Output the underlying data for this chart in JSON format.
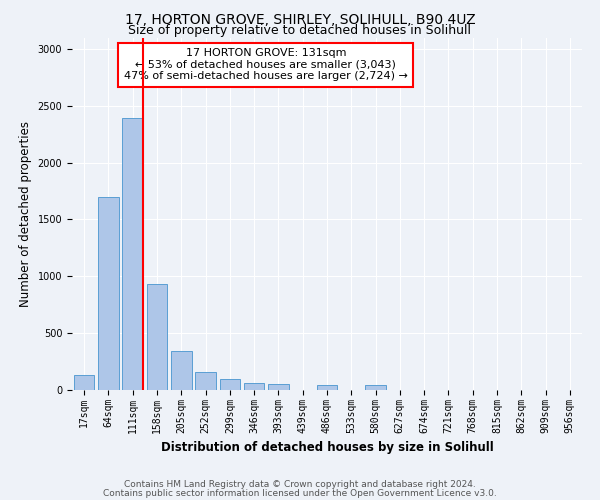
{
  "title": "17, HORTON GROVE, SHIRLEY, SOLIHULL, B90 4UZ",
  "subtitle": "Size of property relative to detached houses in Solihull",
  "xlabel": "Distribution of detached houses by size in Solihull",
  "ylabel": "Number of detached properties",
  "categories": [
    "17sqm",
    "64sqm",
    "111sqm",
    "158sqm",
    "205sqm",
    "252sqm",
    "299sqm",
    "346sqm",
    "393sqm",
    "439sqm",
    "486sqm",
    "533sqm",
    "580sqm",
    "627sqm",
    "674sqm",
    "721sqm",
    "768sqm",
    "815sqm",
    "862sqm",
    "909sqm",
    "956sqm"
  ],
  "values": [
    130,
    1700,
    2390,
    930,
    340,
    155,
    95,
    60,
    50,
    0,
    40,
    0,
    40,
    0,
    0,
    0,
    0,
    0,
    0,
    0,
    0
  ],
  "bar_color": "#aec6e8",
  "bar_edge_color": "#5a9fd4",
  "vline_color": "red",
  "vline_x_index": 2,
  "annotation_line1": "17 HORTON GROVE: 131sqm",
  "annotation_line2": "← 53% of detached houses are smaller (3,043)",
  "annotation_line3": "47% of semi-detached houses are larger (2,724) →",
  "annotation_box_color": "white",
  "annotation_box_edge": "red",
  "ylim": [
    0,
    3100
  ],
  "yticks": [
    0,
    500,
    1000,
    1500,
    2000,
    2500,
    3000
  ],
  "footer_line1": "Contains HM Land Registry data © Crown copyright and database right 2024.",
  "footer_line2": "Contains public sector information licensed under the Open Government Licence v3.0.",
  "background_color": "#eef2f8",
  "plot_bg_color": "#eef2f8",
  "title_fontsize": 10,
  "subtitle_fontsize": 9,
  "axis_label_fontsize": 8.5,
  "tick_fontsize": 7,
  "footer_fontsize": 6.5,
  "annotation_fontsize": 8
}
